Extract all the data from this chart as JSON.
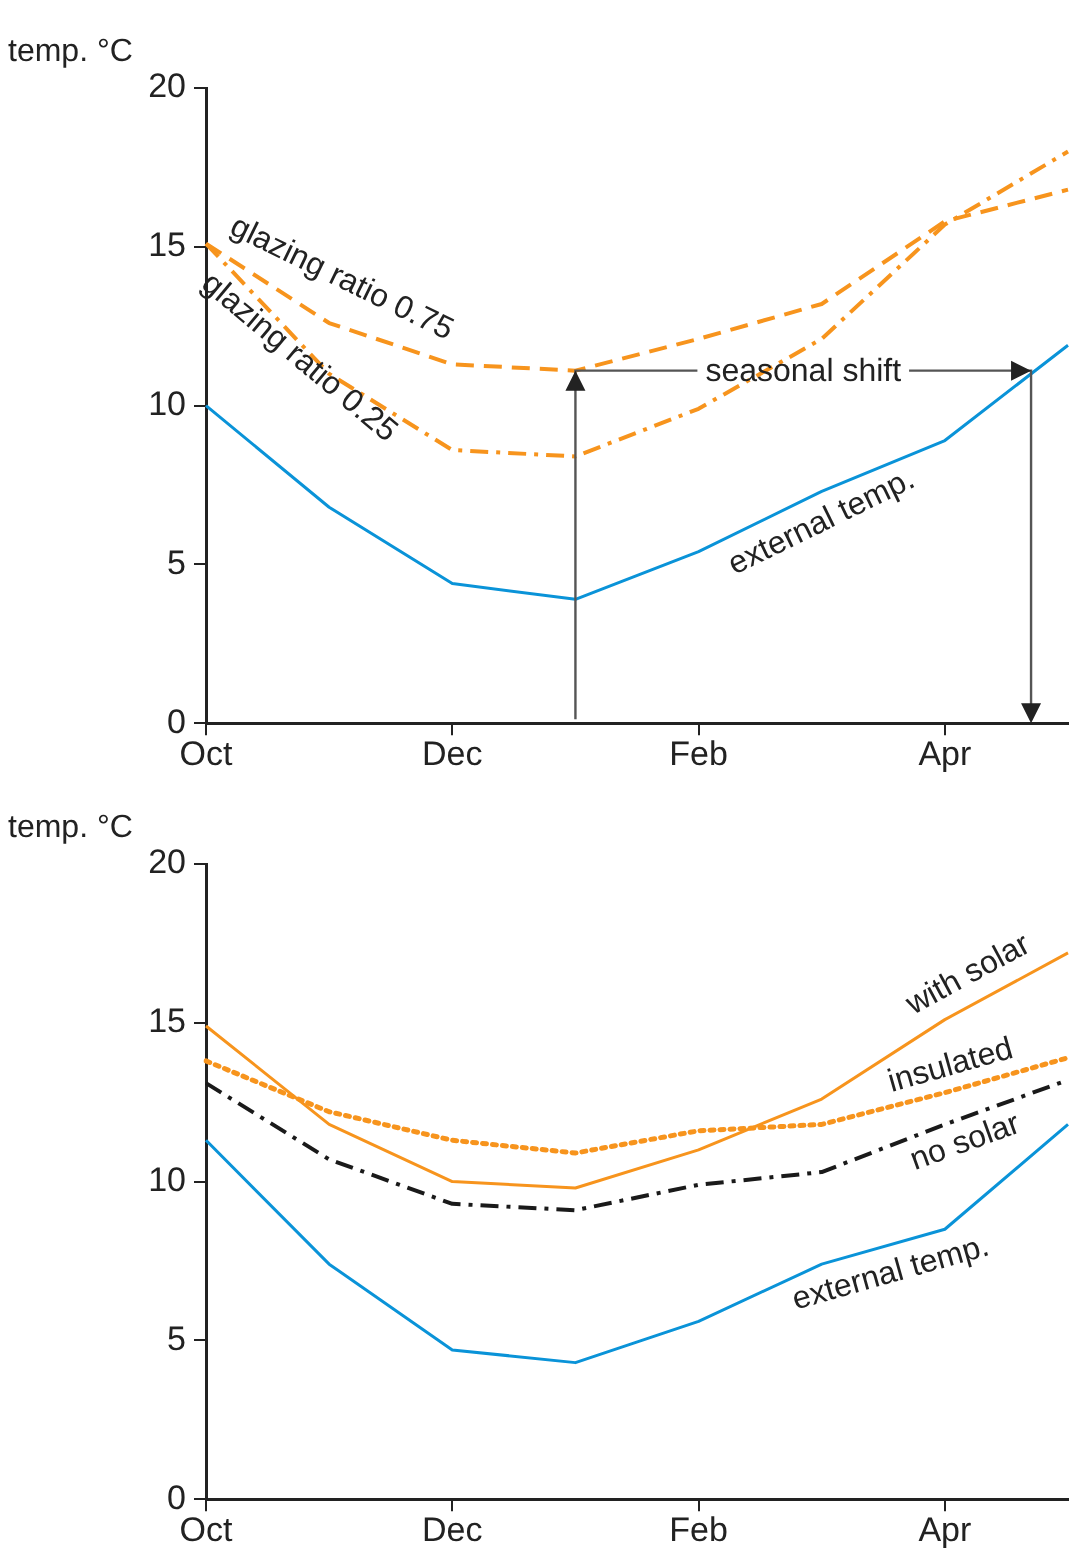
{
  "chart_data": [
    {
      "type": "line",
      "ylabel": "temp. °C",
      "categories": [
        "Oct",
        null,
        "Dec",
        null,
        "Feb",
        null,
        "Apr",
        null
      ],
      "ylim": [
        0,
        20
      ],
      "yticks": [
        0,
        5,
        10,
        15,
        20
      ],
      "grid": false,
      "legend": false,
      "marker": "none",
      "annotations": [
        "seasonal shift"
      ],
      "series": [
        {
          "name": "glazing ratio 0.75",
          "color": "#f7941d",
          "line_style": "dashed",
          "values": [
            15.1,
            12.6,
            11.3,
            11.1,
            12.1,
            13.2,
            15.8,
            16.8
          ]
        },
        {
          "name": "glazing ratio 0.25",
          "color": "#f7941d",
          "line_style": "dashdot",
          "values": [
            15.1,
            11.0,
            8.6,
            8.4,
            9.9,
            12.1,
            15.7,
            18.0
          ]
        },
        {
          "name": "external temp.",
          "color": "#0a93d8",
          "line_style": "solid",
          "values": [
            10.0,
            6.8,
            4.4,
            3.9,
            5.4,
            7.3,
            8.9,
            11.9
          ]
        }
      ]
    },
    {
      "type": "line",
      "ylabel": "temp. °C",
      "categories": [
        "Oct",
        null,
        "Dec",
        null,
        "Feb",
        null,
        "Apr",
        null
      ],
      "ylim": [
        0,
        20
      ],
      "yticks": [
        0,
        5,
        10,
        15,
        20
      ],
      "grid": false,
      "legend": false,
      "marker": "none",
      "series": [
        {
          "name": "with solar",
          "color": "#f7941d",
          "line_style": "solid",
          "values": [
            14.9,
            11.8,
            10.0,
            9.8,
            11.0,
            12.6,
            15.1,
            17.2
          ]
        },
        {
          "name": "insulated",
          "color": "#f7941d",
          "line_style": "dotted",
          "values": [
            13.8,
            12.2,
            11.3,
            10.9,
            11.6,
            11.8,
            12.8,
            13.9
          ]
        },
        {
          "name": "no solar",
          "color": "#1a1a1a",
          "line_style": "dashdot",
          "values": [
            13.1,
            10.7,
            9.3,
            9.1,
            9.9,
            10.3,
            11.8,
            13.2
          ]
        },
        {
          "name": "external temp.",
          "color": "#0a93d8",
          "line_style": "solid",
          "values": [
            11.3,
            7.4,
            4.7,
            4.3,
            5.6,
            7.4,
            8.5,
            11.8
          ]
        }
      ]
    }
  ]
}
